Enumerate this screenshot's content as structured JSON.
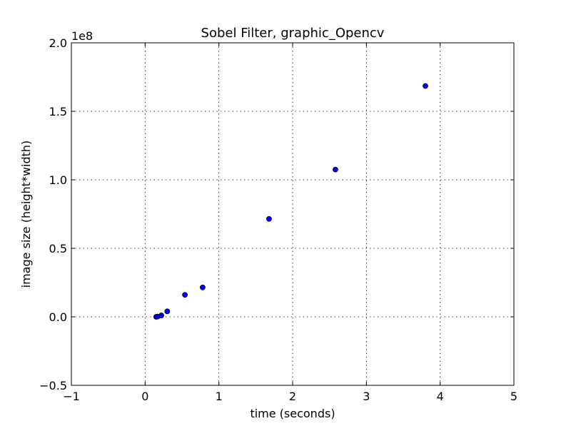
{
  "chart_data": {
    "type": "scatter",
    "title": "Sobel Filter, graphic_Opencv",
    "xlabel": "time (seconds)",
    "ylabel": "image size (height*width)",
    "y_offset_label": "1e8",
    "xlim": [
      -1,
      5
    ],
    "ylim": [
      -0.5,
      2.0
    ],
    "x_ticks": [
      -1,
      0,
      1,
      2,
      3,
      4,
      5
    ],
    "x_tick_labels": [
      "−1",
      "0",
      "1",
      "2",
      "3",
      "4",
      "5"
    ],
    "y_ticks": [
      -0.5,
      0.0,
      0.5,
      1.0,
      1.5,
      2.0
    ],
    "y_tick_labels": [
      "−0.5",
      "0.0",
      "0.5",
      "1.0",
      "1.5",
      "2.0"
    ],
    "grid": true,
    "marker_color": "#0000ff",
    "points": [
      {
        "x": 0.15,
        "y": 0.0
      },
      {
        "x": 0.17,
        "y": 0.002
      },
      {
        "x": 0.22,
        "y": 0.01
      },
      {
        "x": 0.3,
        "y": 0.04
      },
      {
        "x": 0.54,
        "y": 0.16
      },
      {
        "x": 0.78,
        "y": 0.215
      },
      {
        "x": 1.68,
        "y": 0.715
      },
      {
        "x": 2.58,
        "y": 1.075
      },
      {
        "x": 3.8,
        "y": 1.685
      }
    ]
  }
}
